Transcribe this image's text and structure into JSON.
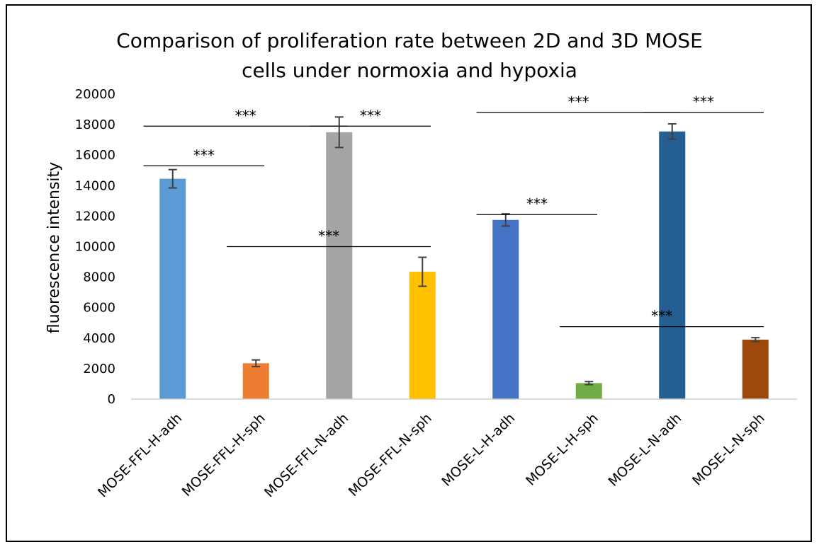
{
  "chart_data": {
    "type": "bar",
    "title": "Comparison of proliferation rate between 2D and 3D MOSE cells under normoxia and hypoxia",
    "title_lines": [
      "Comparison of proliferation rate between 2D and 3D MOSE",
      "cells under normoxia and hypoxia"
    ],
    "xlabel": "",
    "ylabel": "fluorescence intensity",
    "ylim": [
      0,
      20000
    ],
    "yticks": [
      0,
      2000,
      4000,
      6000,
      8000,
      10000,
      12000,
      14000,
      16000,
      18000,
      20000
    ],
    "grid": false,
    "legend": "none",
    "categories": [
      "MOSE-FFL-H-adh",
      "MOSE-FFL-H-sph",
      "MOSE-FFL-N-adh",
      "MOSE-FFL-N-sph",
      "MOSE-L-H-adh",
      "MOSE-L-H-sph",
      "MOSE-L-N-adh",
      "MOSE-L-N-sph"
    ],
    "values": [
      14450,
      2350,
      17500,
      8350,
      11750,
      1050,
      17550,
      3900
    ],
    "errors": [
      600,
      220,
      1000,
      950,
      400,
      100,
      500,
      130
    ],
    "colors": [
      "#5B9BD5",
      "#ED7D31",
      "#A5A5A5",
      "#FFC000",
      "#4472C4",
      "#70AD47",
      "#255E91",
      "#9E480E"
    ],
    "significance": [
      {
        "label": "***",
        "from": 0,
        "to": 2,
        "y": 17900
      },
      {
        "label": "***",
        "from": 2,
        "to": 3,
        "y": 17900
      },
      {
        "label": "***",
        "from": 0,
        "to": 1,
        "y": 15300
      },
      {
        "label": "***",
        "from": 1,
        "to": 3,
        "y": 10000
      },
      {
        "label": "***",
        "from": 4,
        "to": 6,
        "y": 18800
      },
      {
        "label": "***",
        "from": 6,
        "to": 7,
        "y": 18800
      },
      {
        "label": "***",
        "from": 4,
        "to": 5,
        "y": 12100
      },
      {
        "label": "***",
        "from": 5,
        "to": 7,
        "y": 4750
      }
    ]
  }
}
